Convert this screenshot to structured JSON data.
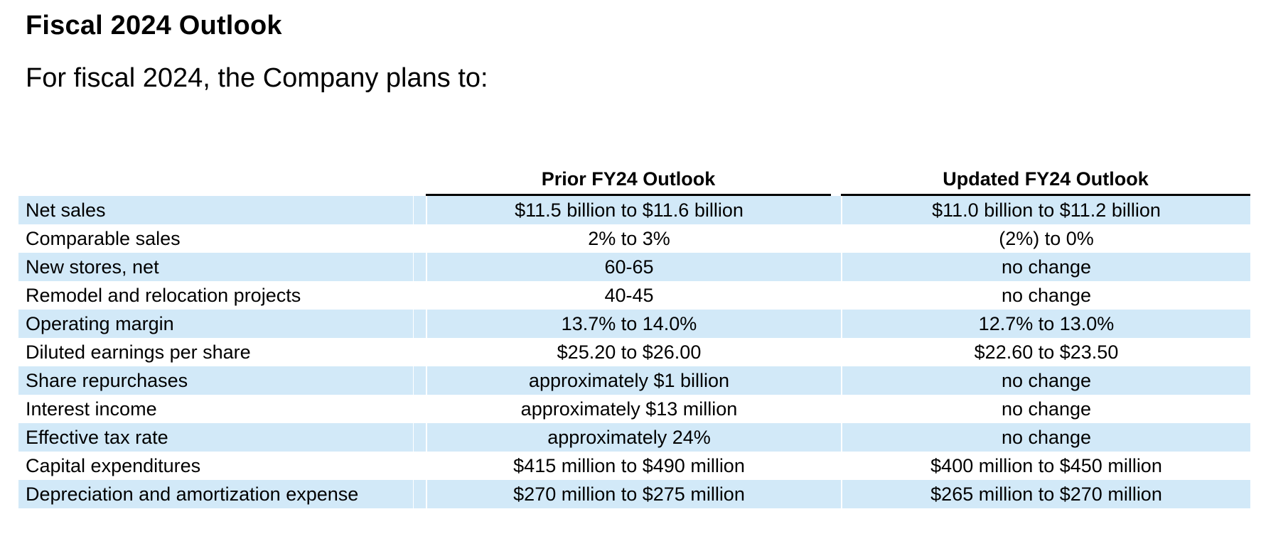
{
  "page": {
    "title": "Fiscal 2024 Outlook",
    "intro": "For fiscal 2024, the Company plans to:"
  },
  "table": {
    "columns": [
      {
        "label": ""
      },
      {
        "label": "Prior FY24 Outlook"
      },
      {
        "label": "Updated FY24 Outlook"
      }
    ],
    "rows": [
      {
        "label": "Net sales",
        "prior": "$11.5 billion to $11.6 billion",
        "updated": "$11.0 billion to $11.2 billion"
      },
      {
        "label": "Comparable sales",
        "prior": "2% to 3%",
        "updated": "(2%) to 0%"
      },
      {
        "label": "New stores, net",
        "prior": "60-65",
        "updated": "no change"
      },
      {
        "label": "Remodel and relocation projects",
        "prior": "40-45",
        "updated": "no change"
      },
      {
        "label": "Operating margin",
        "prior": "13.7% to 14.0%",
        "updated": "12.7% to 13.0%"
      },
      {
        "label": "Diluted earnings per share",
        "prior": "$25.20 to $26.00",
        "updated": "$22.60 to $23.50"
      },
      {
        "label": "Share repurchases",
        "prior": "approximately $1 billion",
        "updated": "no change"
      },
      {
        "label": "Interest income",
        "prior": "approximately $13 million",
        "updated": "no change"
      },
      {
        "label": "Effective tax rate",
        "prior": "approximately 24%",
        "updated": "no change"
      },
      {
        "label": "Capital expenditures",
        "prior": "$415 million to $490 million",
        "updated": "$400 million to $450 million"
      },
      {
        "label": "Depreciation and amortization expense",
        "prior": "$270 million to $275 million",
        "updated": "$265 million to $270 million"
      }
    ],
    "colors": {
      "row_highlight": "#d2e9f8",
      "rule": "#000000",
      "text": "#000000"
    }
  }
}
